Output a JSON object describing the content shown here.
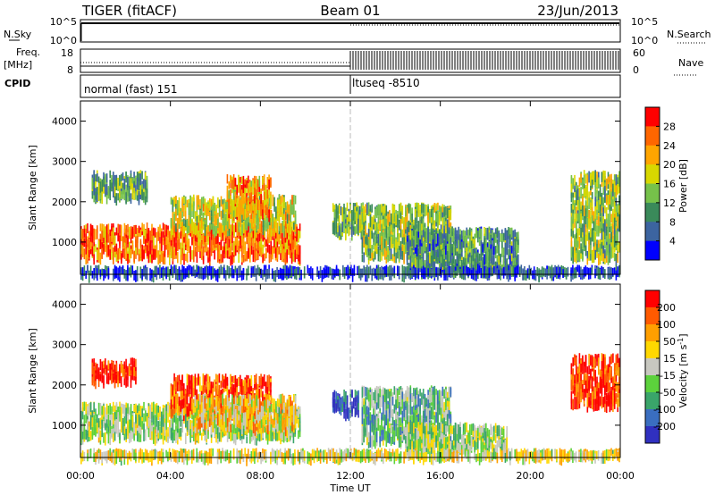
{
  "header": {
    "radar": "TIGER (fitACF)",
    "beam": "Beam 01",
    "date": "23/Jun/2013"
  },
  "top_panels": {
    "nsky_label": "N.Sky",
    "nsky_ticks": [
      "10^5",
      "10^0"
    ],
    "nsearch_label": "N.Search",
    "nsearch_ticks": [
      "10^5",
      "10^0"
    ],
    "freq_label": "Freq.",
    "freq_unit": "[MHz]",
    "freq_ticks": [
      "18",
      "8"
    ],
    "nave_label": "Nave",
    "nave_ticks": [
      "60",
      "0"
    ],
    "cpid_label": "CPID",
    "cpid_segments": [
      {
        "label": "normal (fast) 151",
        "start_hour": 0,
        "end_hour": 12
      },
      {
        "label": "ltuseq -8510",
        "start_hour": 12,
        "end_hour": 24
      }
    ]
  },
  "colors": {
    "power_scale": [
      "#0000ff",
      "#3c64a0",
      "#3a8a5a",
      "#76c24a",
      "#d8d800",
      "#ffa500",
      "#ff6600",
      "#ff0000"
    ],
    "velocity_scale": [
      "#3030c0",
      "#3a6ec0",
      "#3aa56a",
      "#5cd23c",
      "#c8c8c0",
      "#ffd800",
      "#ff9f00",
      "#ff5a00",
      "#ff0000"
    ]
  },
  "chart_data": [
    {
      "type": "heatmap",
      "name": "power",
      "xlabel": "Time UT",
      "ylabel": "Slant Range [km]",
      "xlim": [
        0,
        24
      ],
      "ylim": [
        200,
        4500
      ],
      "x_ticks": [
        "00:00",
        "04:00",
        "08:00",
        "12:00",
        "16:00",
        "20:00",
        "00:00"
      ],
      "y_ticks": [
        1000,
        2000,
        3000,
        4000
      ],
      "colorbar_label": "Power [dB]",
      "colorbar_ticks": [
        4,
        8,
        12,
        16,
        20,
        24,
        28
      ],
      "scatter_regions": [
        {
          "t0": 0.0,
          "t1": 9.8,
          "r0": 600,
          "r1": 1400,
          "level": 0.8
        },
        {
          "t0": 0.5,
          "t1": 3.0,
          "r0": 2100,
          "r1": 2700,
          "level": 0.35
        },
        {
          "t0": 4.0,
          "t1": 9.6,
          "r0": 1300,
          "r1": 2100,
          "level": 0.55
        },
        {
          "t0": 6.5,
          "t1": 8.5,
          "r0": 1700,
          "r1": 2600,
          "level": 0.7
        },
        {
          "t0": 11.2,
          "t1": 12.6,
          "r0": 1200,
          "r1": 1900,
          "level": 0.4
        },
        {
          "t0": 12.5,
          "t1": 16.5,
          "r0": 600,
          "r1": 1900,
          "level": 0.45
        },
        {
          "t0": 14.5,
          "t1": 19.5,
          "r0": 250,
          "r1": 1300,
          "level": 0.3
        },
        {
          "t0": 21.8,
          "t1": 24.0,
          "r0": 600,
          "r1": 2700,
          "level": 0.45
        },
        {
          "t0": 0.0,
          "t1": 24.0,
          "r0": 200,
          "r1": 350,
          "level": 0.15
        }
      ]
    },
    {
      "type": "heatmap",
      "name": "velocity",
      "xlabel": "Time UT",
      "ylabel": "Slant Range [km]",
      "xlim": [
        0,
        24
      ],
      "ylim": [
        200,
        4500
      ],
      "x_ticks": [
        "00:00",
        "04:00",
        "08:00",
        "12:00",
        "16:00",
        "20:00",
        "00:00"
      ],
      "y_ticks": [
        1000,
        2000,
        3000,
        4000
      ],
      "colorbar_label": "Velocity [m s^-1]",
      "colorbar_ticks": [
        200,
        100,
        50,
        15,
        -15,
        -50,
        -100,
        -200
      ],
      "scatter_regions": [
        {
          "t0": 0.0,
          "t1": 9.8,
          "r0": 700,
          "r1": 1500,
          "level": 0.45
        },
        {
          "t0": 0.5,
          "t1": 2.5,
          "r0": 2100,
          "r1": 2600,
          "level": 0.95
        },
        {
          "t0": 4.0,
          "t1": 8.5,
          "r0": 1300,
          "r1": 2200,
          "level": 0.85
        },
        {
          "t0": 5.0,
          "t1": 9.6,
          "r0": 900,
          "r1": 1700,
          "level": 0.6
        },
        {
          "t0": 11.2,
          "t1": 12.4,
          "r0": 1300,
          "r1": 1800,
          "level": 0.1
        },
        {
          "t0": 12.5,
          "t1": 16.5,
          "r0": 600,
          "r1": 1900,
          "level": 0.35
        },
        {
          "t0": 14.5,
          "t1": 19.0,
          "r0": 400,
          "r1": 1000,
          "level": 0.45
        },
        {
          "t0": 21.8,
          "t1": 24.0,
          "r0": 1500,
          "r1": 2700,
          "level": 0.9
        },
        {
          "t0": 0.0,
          "t1": 24.0,
          "r0": 200,
          "r1": 350,
          "level": 0.55
        }
      ]
    }
  ]
}
